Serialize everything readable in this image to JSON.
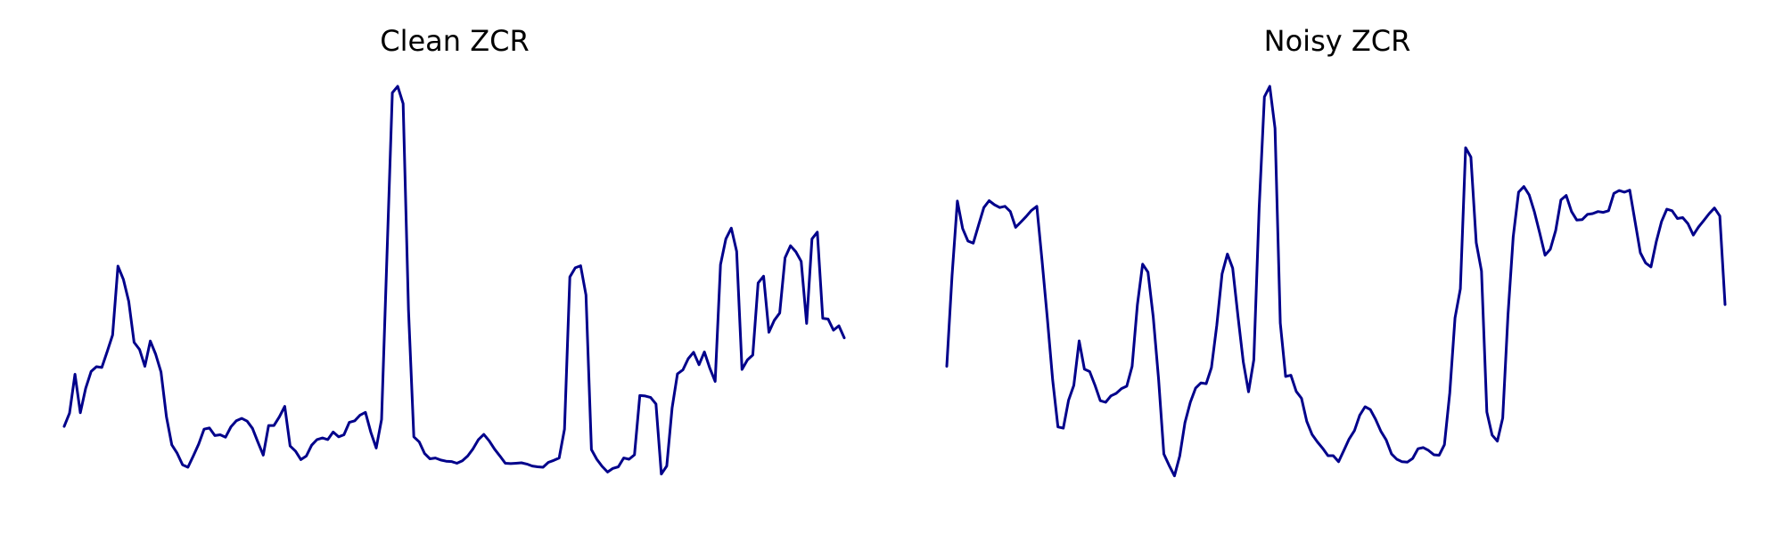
{
  "figure": {
    "line_color": "#00008B",
    "background": "#FFFFFF"
  },
  "chart_data": [
    {
      "type": "line",
      "title": "Clean ZCR",
      "xlabel": "",
      "ylabel": "",
      "axes_visible": false,
      "grid": false,
      "ylim": [
        0,
        1
      ],
      "series": [
        {
          "values": [
            0.151,
            0.184,
            0.281,
            0.185,
            0.246,
            0.288,
            0.3,
            0.298,
            0.338,
            0.379,
            0.551,
            0.518,
            0.463,
            0.361,
            0.343,
            0.301,
            0.364,
            0.331,
            0.287,
            0.175,
            0.105,
            0.084,
            0.055,
            0.049,
            0.077,
            0.107,
            0.144,
            0.147,
            0.128,
            0.13,
            0.124,
            0.15,
            0.165,
            0.171,
            0.164,
            0.146,
            0.112,
            0.079,
            0.153,
            0.153,
            0.175,
            0.201,
            0.102,
            0.089,
            0.068,
            0.077,
            0.104,
            0.118,
            0.122,
            0.118,
            0.137,
            0.125,
            0.13,
            0.161,
            0.165,
            0.179,
            0.186,
            0.136,
            0.097,
            0.168,
            0.58,
            0.984,
            1.0,
            0.957,
            0.442,
            0.125,
            0.112,
            0.083,
            0.07,
            0.072,
            0.067,
            0.064,
            0.063,
            0.059,
            0.065,
            0.077,
            0.095,
            0.118,
            0.131,
            0.115,
            0.094,
            0.077,
            0.059,
            0.058,
            0.059,
            0.06,
            0.057,
            0.052,
            0.05,
            0.049,
            0.061,
            0.066,
            0.072,
            0.144,
            0.524,
            0.547,
            0.552,
            0.479,
            0.093,
            0.069,
            0.051,
            0.037,
            0.046,
            0.05,
            0.072,
            0.069,
            0.08,
            0.228,
            0.227,
            0.223,
            0.207,
            0.032,
            0.052,
            0.197,
            0.282,
            0.292,
            0.32,
            0.336,
            0.305,
            0.337,
            0.297,
            0.263,
            0.555,
            0.619,
            0.646,
            0.588,
            0.293,
            0.317,
            0.329,
            0.509,
            0.526,
            0.386,
            0.416,
            0.434,
            0.572,
            0.602,
            0.587,
            0.563,
            0.408,
            0.619,
            0.636,
            0.421,
            0.419,
            0.391,
            0.402,
            0.372
          ]
        }
      ]
    },
    {
      "type": "line",
      "title": "Noisy ZCR",
      "xlabel": "",
      "ylabel": "",
      "axes_visible": false,
      "grid": false,
      "ylim": [
        0,
        1
      ],
      "series": [
        {
          "values": [
            0.307,
            0.531,
            0.716,
            0.648,
            0.617,
            0.612,
            0.656,
            0.7,
            0.717,
            0.707,
            0.7,
            0.703,
            0.69,
            0.651,
            0.664,
            0.678,
            0.693,
            0.703,
            0.568,
            0.426,
            0.273,
            0.157,
            0.154,
            0.223,
            0.26,
            0.37,
            0.3,
            0.294,
            0.26,
            0.222,
            0.218,
            0.234,
            0.24,
            0.252,
            0.258,
            0.307,
            0.459,
            0.56,
            0.54,
            0.429,
            0.275,
            0.09,
            0.062,
            0.036,
            0.085,
            0.168,
            0.218,
            0.253,
            0.266,
            0.264,
            0.304,
            0.409,
            0.536,
            0.585,
            0.55,
            0.432,
            0.318,
            0.244,
            0.323,
            0.699,
            0.974,
            1.0,
            0.896,
            0.414,
            0.282,
            0.285,
            0.245,
            0.228,
            0.171,
            0.138,
            0.12,
            0.104,
            0.086,
            0.086,
            0.071,
            0.099,
            0.127,
            0.148,
            0.186,
            0.207,
            0.2,
            0.176,
            0.146,
            0.125,
            0.09,
            0.077,
            0.071,
            0.07,
            0.079,
            0.103,
            0.106,
            0.099,
            0.088,
            0.087,
            0.113,
            0.241,
            0.427,
            0.499,
            0.848,
            0.825,
            0.613,
            0.543,
            0.194,
            0.137,
            0.122,
            0.179,
            0.434,
            0.628,
            0.738,
            0.752,
            0.731,
            0.689,
            0.637,
            0.582,
            0.597,
            0.643,
            0.719,
            0.73,
            0.69,
            0.669,
            0.67,
            0.683,
            0.685,
            0.69,
            0.688,
            0.692,
            0.735,
            0.742,
            0.738,
            0.743,
            0.666,
            0.588,
            0.563,
            0.553,
            0.615,
            0.665,
            0.696,
            0.692,
            0.673,
            0.675,
            0.66,
            0.632,
            0.652,
            0.668,
            0.685,
            0.699,
            0.679,
            0.46
          ]
        }
      ]
    }
  ]
}
